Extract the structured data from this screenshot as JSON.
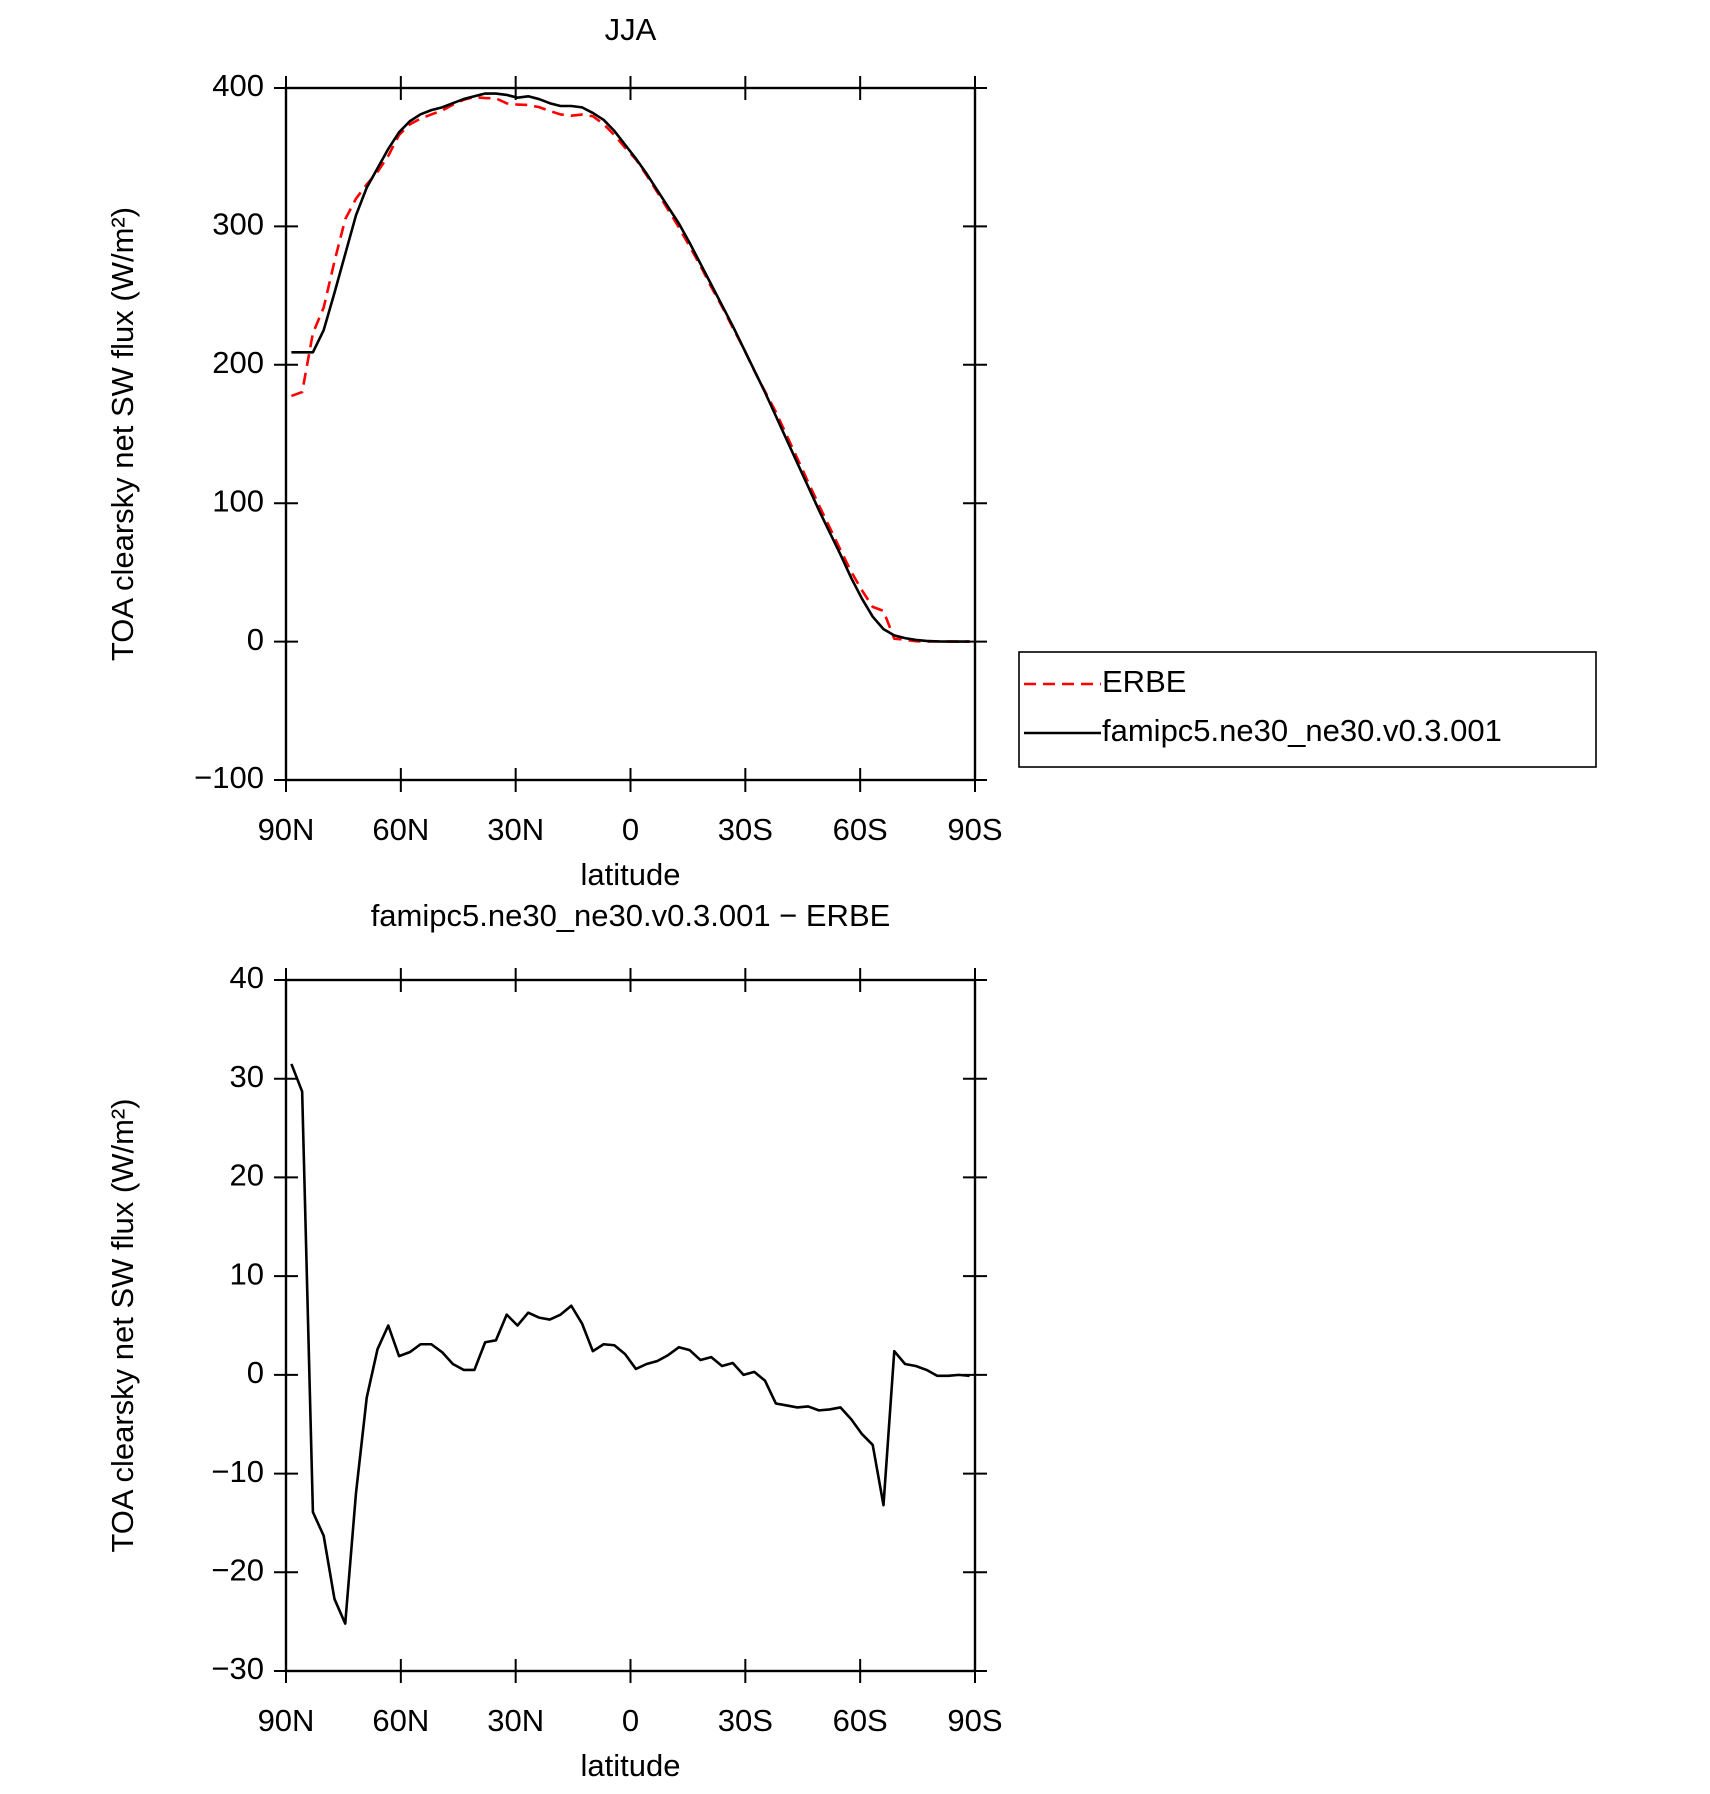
{
  "chart_data": [
    {
      "type": "line",
      "title": "JJA",
      "xlabel": "latitude",
      "ylabel": "TOA clearsky net SW flux (W/m²)",
      "x": [
        88.59,
        85.78,
        82.97,
        80.16,
        77.34,
        74.53,
        71.72,
        68.91,
        66.09,
        63.28,
        60.47,
        57.66,
        54.84,
        52.03,
        49.22,
        46.41,
        43.59,
        40.78,
        37.97,
        35.16,
        32.34,
        29.53,
        26.72,
        23.91,
        21.09,
        18.28,
        15.47,
        12.66,
        9.84,
        7.03,
        4.22,
        1.41,
        -1.41,
        -4.22,
        -7.03,
        -9.84,
        -12.66,
        -15.47,
        -18.28,
        -21.09,
        -23.91,
        -26.72,
        -29.53,
        -32.34,
        -35.16,
        -37.97,
        -40.78,
        -43.59,
        -46.41,
        -49.22,
        -52.03,
        -54.84,
        -57.66,
        -60.47,
        -63.28,
        -66.09,
        -68.91,
        -71.72,
        -74.53,
        -77.34,
        -80.16,
        -82.97,
        -85.78,
        -88.59
      ],
      "series": [
        {
          "name": "ERBE",
          "color": "#ff0000",
          "linestyle": "dashed",
          "values": [
            177.5,
            180.3,
            222.9,
            241.3,
            274.7,
            305.2,
            320,
            330.3,
            339.4,
            351,
            366.1,
            373.7,
            377.9,
            380.9,
            383.7,
            387.9,
            391.5,
            393.5,
            392.7,
            392.5,
            388.9,
            388,
            387.7,
            386.2,
            383.4,
            380.9,
            380,
            380.8,
            379.6,
            373.9,
            366,
            356.9,
            348.4,
            336.9,
            324.6,
            312,
            299.2,
            285.5,
            271.5,
            256.2,
            242.1,
            226.8,
            212,
            195.7,
            180.6,
            165.9,
            149.1,
            132.3,
            115.2,
            98.6,
            82.5,
            66.3,
            50.5,
            37,
            25.1,
            22.2,
            2.1,
            1.4,
            0.3,
            0,
            0.2,
            0.1,
            0,
            0.1
          ]
        },
        {
          "name": "famipc5.ne30_ne30.v0.3.001",
          "color": "#000000",
          "linestyle": "solid",
          "values": [
            209,
            209,
            209,
            225,
            252,
            280,
            308,
            328,
            342,
            356,
            368,
            376,
            381,
            384,
            386,
            389,
            392,
            394,
            396,
            396,
            395,
            393,
            394,
            392,
            389,
            387,
            387,
            386,
            382,
            377,
            369,
            359,
            349,
            338,
            326,
            314,
            302,
            288,
            273,
            258,
            243,
            228,
            212,
            196,
            180,
            163,
            146,
            129,
            112,
            95,
            79,
            63,
            46,
            31,
            18,
            9,
            4.5,
            2.5,
            1.2,
            0.5,
            0.1,
            0,
            0,
            0
          ]
        }
      ],
      "xlim": [
        90,
        -90
      ],
      "xticks": [
        {
          "value": 90,
          "label": "90N"
        },
        {
          "value": 60,
          "label": "60N"
        },
        {
          "value": 30,
          "label": "30N"
        },
        0,
        {
          "value": -30,
          "label": "30S"
        },
        {
          "value": -60,
          "label": "60S"
        },
        {
          "value": -90,
          "label": "90S"
        }
      ],
      "ylim": [
        -100,
        400
      ],
      "yticks": [
        {
          "value": -100,
          "label": "−100"
        },
        0,
        100,
        200,
        300,
        400
      ],
      "legend": "right"
    },
    {
      "type": "line",
      "title": "famipc5.ne30_ne30.v0.3.001 − ERBE",
      "xlabel": "latitude",
      "ylabel": "TOA clearsky net SW flux (W/m²)",
      "x": [
        88.59,
        85.78,
        82.97,
        80.16,
        77.34,
        74.53,
        71.72,
        68.91,
        66.09,
        63.28,
        60.47,
        57.66,
        54.84,
        52.03,
        49.22,
        46.41,
        43.59,
        40.78,
        37.97,
        35.16,
        32.34,
        29.53,
        26.72,
        23.91,
        21.09,
        18.28,
        15.47,
        12.66,
        9.84,
        7.03,
        4.22,
        1.41,
        -1.41,
        -4.22,
        -7.03,
        -9.84,
        -12.66,
        -15.47,
        -18.28,
        -21.09,
        -23.91,
        -26.72,
        -29.53,
        -32.34,
        -35.16,
        -37.97,
        -40.78,
        -43.59,
        -46.41,
        -49.22,
        -52.03,
        -54.84,
        -57.66,
        -60.47,
        -63.28,
        -66.09,
        -68.91,
        -71.72,
        -74.53,
        -77.34,
        -80.16,
        -82.97,
        -85.78,
        -88.59
      ],
      "series": [
        {
          "color": "#000000",
          "linestyle": "solid",
          "values": [
            31.5,
            28.7,
            -13.9,
            -16.3,
            -22.7,
            -25.2,
            -12,
            -2.3,
            2.6,
            5,
            1.9,
            2.3,
            3.1,
            3.1,
            2.3,
            1.1,
            0.5,
            0.5,
            3.3,
            3.5,
            6.1,
            5,
            6.3,
            5.8,
            5.6,
            6.1,
            7,
            5.2,
            2.4,
            3.1,
            3,
            2.1,
            0.6,
            1.1,
            1.4,
            2,
            2.8,
            2.5,
            1.5,
            1.8,
            0.9,
            1.2,
            0,
            0.3,
            -0.6,
            -2.9,
            -3.1,
            -3.3,
            -3.2,
            -3.6,
            -3.5,
            -3.3,
            -4.5,
            -6,
            -7.1,
            -13.2,
            2.4,
            1.1,
            0.9,
            0.5,
            -0.1,
            -0.1,
            0,
            -0.1
          ]
        }
      ],
      "xlim": [
        90,
        -90
      ],
      "xticks": [
        {
          "value": 90,
          "label": "90N"
        },
        {
          "value": 60,
          "label": "60N"
        },
        {
          "value": 30,
          "label": "30N"
        },
        0,
        {
          "value": -30,
          "label": "30S"
        },
        {
          "value": -60,
          "label": "60S"
        },
        {
          "value": -90,
          "label": "90S"
        }
      ],
      "ylim": [
        -30,
        40
      ],
      "yticks": [
        {
          "value": -30,
          "label": "−30"
        },
        {
          "value": -20,
          "label": "−20"
        },
        {
          "value": -10,
          "label": "−10"
        },
        0,
        10,
        20,
        30,
        40
      ]
    }
  ]
}
